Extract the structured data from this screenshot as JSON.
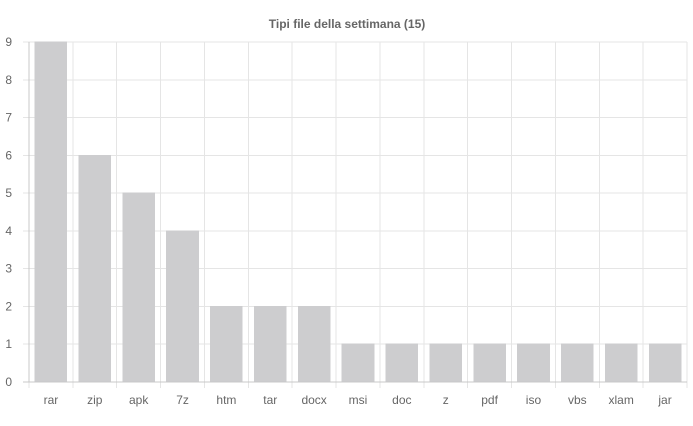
{
  "chart_data": {
    "type": "bar",
    "title": "Tipi file della settimana (15)",
    "xlabel": "",
    "ylabel": "",
    "categories": [
      "rar",
      "zip",
      "apk",
      "7z",
      "htm",
      "tar",
      "docx",
      "msi",
      "doc",
      "z",
      "pdf",
      "iso",
      "vbs",
      "xlam",
      "jar"
    ],
    "values": [
      9,
      6,
      5,
      4,
      2,
      2,
      2,
      1,
      1,
      1,
      1,
      1,
      1,
      1,
      1
    ],
    "ylim": [
      0,
      9
    ],
    "yticks": [
      "0",
      "1",
      "2",
      "3",
      "4",
      "5",
      "6",
      "7",
      "8",
      "9"
    ],
    "grid": true,
    "legend": "none",
    "colors": {
      "bar_fill": "#cdcdcf",
      "bar_stroke": "#cdcdcf",
      "grid": "#e5e5e5",
      "axis": "#c8c8c8",
      "text": "#666666",
      "title": "#666666"
    }
  }
}
